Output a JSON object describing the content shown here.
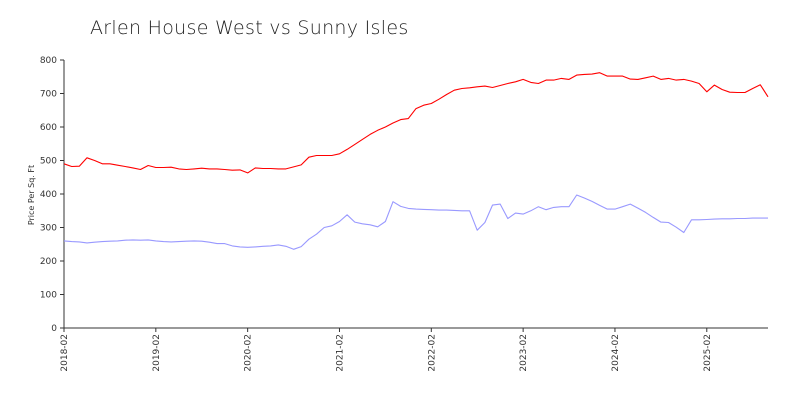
{
  "chart_data": {
    "type": "line",
    "title": "Arlen House West vs Sunny Isles",
    "xlabel": "",
    "ylabel": "Price Per Sq. Ft",
    "ylim": [
      0,
      800
    ],
    "yticks": [
      0,
      100,
      200,
      300,
      400,
      500,
      600,
      700,
      800
    ],
    "xticks": [
      "2018-02",
      "2019-02",
      "2020-02",
      "2021-02",
      "2022-02",
      "2023-02",
      "2024-02",
      "2025-02"
    ],
    "grid": false,
    "legend": "none",
    "x_range": [
      "2018-02",
      "2025-10"
    ],
    "series": [
      {
        "color": "#ff0000",
        "x": [
          "2018-02",
          "2018-03",
          "2018-04",
          "2018-05",
          "2018-06",
          "2018-07",
          "2018-08",
          "2018-09",
          "2018-10",
          "2018-11",
          "2018-12",
          "2019-01",
          "2019-02",
          "2019-03",
          "2019-04",
          "2019-05",
          "2019-06",
          "2019-07",
          "2019-08",
          "2019-09",
          "2019-10",
          "2019-11",
          "2019-12",
          "2020-01",
          "2020-02",
          "2020-03",
          "2020-04",
          "2020-05",
          "2020-06",
          "2020-07",
          "2020-08",
          "2020-09",
          "2020-10",
          "2020-11",
          "2020-12",
          "2021-01",
          "2021-02",
          "2021-03",
          "2021-04",
          "2021-05",
          "2021-06",
          "2021-07",
          "2021-08",
          "2021-09",
          "2021-10",
          "2021-11",
          "2021-12",
          "2022-01",
          "2022-02",
          "2022-03",
          "2022-04",
          "2022-05",
          "2022-06",
          "2022-07",
          "2022-08",
          "2022-09",
          "2022-10",
          "2022-11",
          "2022-12",
          "2023-01",
          "2023-02",
          "2023-03",
          "2023-04",
          "2023-05",
          "2023-06",
          "2023-07",
          "2023-08",
          "2023-09",
          "2023-10",
          "2023-11",
          "2023-12",
          "2024-01",
          "2024-02",
          "2024-03",
          "2024-04",
          "2024-05",
          "2024-06",
          "2024-07",
          "2024-08",
          "2024-09",
          "2024-10",
          "2024-11",
          "2024-12",
          "2025-01",
          "2025-02",
          "2025-03",
          "2025-04",
          "2025-05",
          "2025-06",
          "2025-07",
          "2025-08",
          "2025-09",
          "2025-10"
        ],
        "y": [
          490,
          482,
          483,
          508,
          500,
          490,
          490,
          486,
          482,
          478,
          473,
          485,
          479,
          479,
          480,
          475,
          473,
          475,
          477,
          475,
          475,
          473,
          471,
          472,
          463,
          478,
          476,
          476,
          475,
          475,
          481,
          487,
          510,
          515,
          515,
          515,
          520,
          533,
          548,
          563,
          578,
          590,
          600,
          612,
          622,
          625,
          655,
          665,
          670,
          683,
          697,
          710,
          715,
          717,
          720,
          722,
          718,
          724,
          730,
          735,
          742,
          733,
          730,
          740,
          740,
          745,
          742,
          755,
          757,
          758,
          762,
          752,
          752,
          752,
          743,
          742,
          747,
          752,
          742,
          745,
          740,
          742,
          737,
          730,
          705,
          725,
          712,
          704,
          703,
          703,
          715,
          726,
          690
        ]
      },
      {
        "color": "#9999ff",
        "x": [
          "2018-02",
          "2018-03",
          "2018-04",
          "2018-05",
          "2018-06",
          "2018-07",
          "2018-08",
          "2018-09",
          "2018-10",
          "2018-11",
          "2018-12",
          "2019-01",
          "2019-02",
          "2019-03",
          "2019-04",
          "2019-05",
          "2019-06",
          "2019-07",
          "2019-08",
          "2019-09",
          "2019-10",
          "2019-11",
          "2019-12",
          "2020-01",
          "2020-02",
          "2020-03",
          "2020-04",
          "2020-05",
          "2020-06",
          "2020-07",
          "2020-08",
          "2020-09",
          "2020-10",
          "2020-11",
          "2020-12",
          "2021-01",
          "2021-02",
          "2021-03",
          "2021-04",
          "2021-05",
          "2021-06",
          "2021-07",
          "2021-08",
          "2021-09",
          "2021-10",
          "2021-11",
          "2021-12",
          "2022-01",
          "2022-02",
          "2022-03",
          "2022-04",
          "2022-05",
          "2022-06",
          "2022-07",
          "2022-08",
          "2022-09",
          "2022-10",
          "2022-11",
          "2022-12",
          "2023-01",
          "2023-02",
          "2023-03",
          "2023-04",
          "2023-05",
          "2023-06",
          "2023-07",
          "2023-08",
          "2023-09",
          "2023-10",
          "2023-11",
          "2023-12",
          "2024-01",
          "2024-02",
          "2024-03",
          "2024-04",
          "2024-05",
          "2024-06",
          "2024-07",
          "2024-08",
          "2024-09",
          "2024-10",
          "2024-11",
          "2024-12",
          "2025-01",
          "2025-02",
          "2025-03",
          "2025-04",
          "2025-05",
          "2025-06",
          "2025-07",
          "2025-08",
          "2025-09",
          "2025-10"
        ],
        "y": [
          260,
          258,
          257,
          254,
          256,
          258,
          259,
          260,
          262,
          263,
          262,
          263,
          260,
          258,
          257,
          258,
          259,
          260,
          259,
          256,
          252,
          252,
          245,
          242,
          241,
          242,
          244,
          245,
          248,
          244,
          235,
          243,
          265,
          280,
          300,
          305,
          318,
          338,
          316,
          311,
          308,
          302,
          318,
          377,
          363,
          357,
          355,
          354,
          353,
          352,
          352,
          351,
          350,
          350,
          292,
          315,
          367,
          370,
          327,
          343,
          340,
          350,
          362,
          353,
          360,
          362,
          362,
          397,
          388,
          378,
          366,
          355,
          355,
          362,
          370,
          358,
          345,
          330,
          316,
          315,
          301,
          285,
          323,
          323,
          324,
          325,
          326,
          326,
          327,
          327,
          328,
          328,
          328
        ]
      }
    ]
  }
}
